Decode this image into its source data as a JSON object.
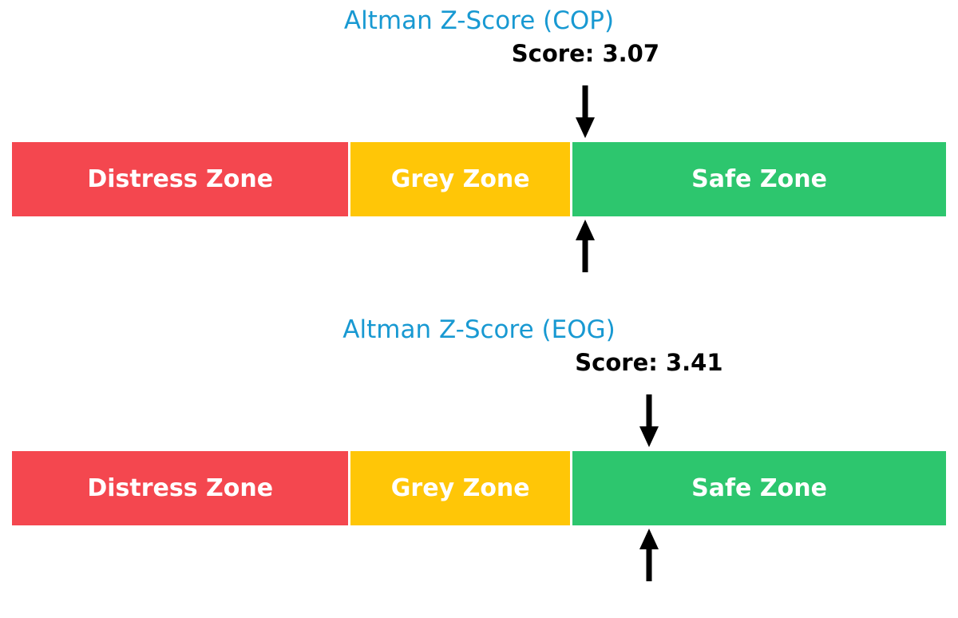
{
  "chart_data": [
    {
      "type": "bar",
      "title": "Altman Z-Score (COP)",
      "score": 3.07,
      "score_label": "Score: 3.07",
      "axis_range": [
        0,
        5
      ],
      "segments": [
        {
          "label": "Distress Zone",
          "range": [
            0,
            1.81
          ],
          "color": "#F4474F"
        },
        {
          "label": "Grey Zone",
          "range": [
            1.81,
            2.99
          ],
          "color": "#FFC607"
        },
        {
          "label": "Safe Zone",
          "range": [
            2.99,
            5.0
          ],
          "color": "#2DC66E"
        }
      ],
      "title_color": "#1899D2",
      "marker_color": "#000000",
      "legend_position": "none",
      "grid": false
    },
    {
      "type": "bar",
      "title": "Altman Z-Score (EOG)",
      "score": 3.41,
      "score_label": "Score: 3.41",
      "axis_range": [
        0,
        5
      ],
      "segments": [
        {
          "label": "Distress Zone",
          "range": [
            0,
            1.81
          ],
          "color": "#F4474F"
        },
        {
          "label": "Grey Zone",
          "range": [
            1.81,
            2.99
          ],
          "color": "#FFC607"
        },
        {
          "label": "Safe Zone",
          "range": [
            2.99,
            5.0
          ],
          "color": "#2DC66E"
        }
      ],
      "title_color": "#1899D2",
      "marker_color": "#000000",
      "legend_position": "none",
      "grid": false
    }
  ]
}
